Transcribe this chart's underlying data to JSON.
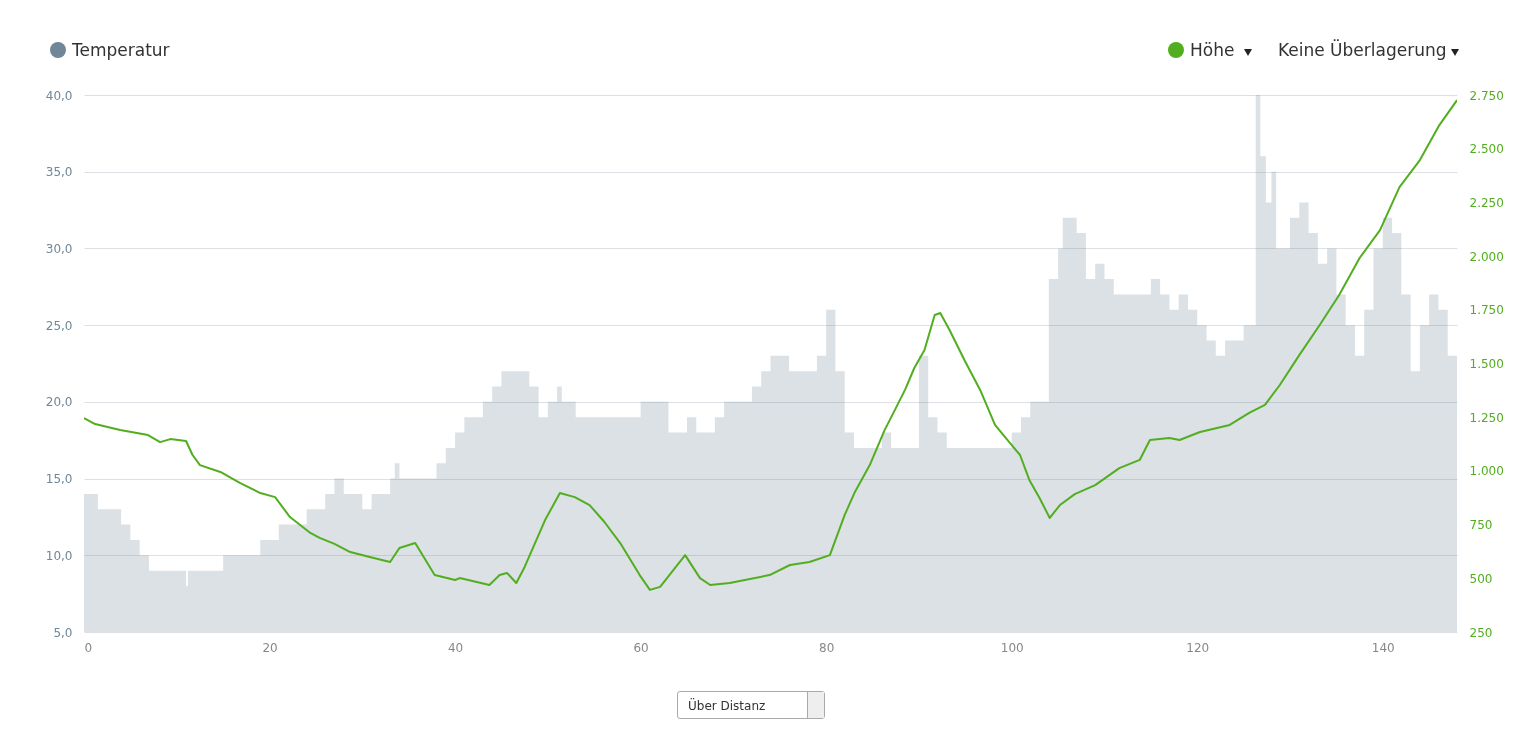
{
  "chart_data": {
    "type": "area",
    "xlim": [
      0,
      148
    ],
    "xticks": [
      0,
      20,
      40,
      60,
      80,
      100,
      120,
      140
    ],
    "ylim": [
      5,
      40
    ],
    "yticks": [
      {
        "value": 5,
        "label": "5,0"
      },
      {
        "value": 10,
        "label": "10,0"
      },
      {
        "value": 15,
        "label": "15,0"
      },
      {
        "value": 20,
        "label": "20,0"
      },
      {
        "value": 25,
        "label": "25,0"
      },
      {
        "value": 30,
        "label": "30,0"
      },
      {
        "value": 35,
        "label": "35,0"
      },
      {
        "value": 40,
        "label": "40,0"
      }
    ],
    "y2lim": [
      250,
      2750
    ],
    "y2ticks": [
      {
        "value": 250,
        "label": "250"
      },
      {
        "value": 500,
        "label": "500"
      },
      {
        "value": 750,
        "label": "750"
      },
      {
        "value": 1000,
        "label": "1.000"
      },
      {
        "value": 1250,
        "label": "1.250"
      },
      {
        "value": 1500,
        "label": "1.500"
      },
      {
        "value": 1750,
        "label": "1.750"
      },
      {
        "value": 2000,
        "label": "2.000"
      },
      {
        "value": 2250,
        "label": "2.250"
      },
      {
        "value": 2500,
        "label": "2.500"
      },
      {
        "value": 2750,
        "label": "2.750"
      }
    ],
    "grid": "y",
    "legend": "top",
    "annotations": [
      "Keine Überlagerung",
      "Über Distanz"
    ],
    "series": [
      {
        "name": "Temperatur",
        "color": "#6f8798",
        "x": [
          0,
          1.5,
          4,
          5,
          6,
          7,
          11,
          11.2,
          15,
          19,
          21,
          24,
          26,
          27,
          28,
          30,
          31,
          33,
          33.5,
          34,
          38,
          39,
          40,
          41,
          43,
          44,
          45,
          48,
          49,
          50,
          51,
          51.5,
          53,
          60,
          63,
          65,
          66,
          68,
          69,
          72,
          73,
          74,
          76,
          79,
          80,
          81,
          82,
          83,
          86,
          87,
          90,
          91,
          92,
          93,
          100,
          101,
          102,
          104,
          105,
          105.5,
          107,
          108,
          109,
          110,
          111,
          115,
          116,
          117,
          118,
          119,
          120,
          121,
          122,
          123,
          125,
          126.3,
          126.8,
          127.4,
          128,
          128.5,
          130,
          131,
          132,
          133,
          134,
          135,
          136,
          137,
          138,
          139,
          140,
          141,
          142,
          143,
          144,
          145,
          146,
          147,
          148
        ],
        "values": [
          14,
          13,
          12,
          11,
          10,
          9,
          8,
          9,
          10,
          11,
          12,
          13,
          14,
          15,
          14,
          13,
          14,
          15,
          16,
          15,
          16,
          17,
          18,
          19,
          20,
          21,
          22,
          21,
          19,
          20,
          21,
          20,
          19,
          20,
          18,
          19,
          18,
          19,
          20,
          21,
          22,
          23,
          22,
          23,
          26,
          22,
          18,
          17,
          18,
          17,
          23,
          19,
          18,
          17,
          18,
          19,
          20,
          28,
          30,
          32,
          31,
          28,
          29,
          28,
          27,
          28,
          27,
          26,
          27,
          26,
          25,
          24,
          23,
          24,
          25,
          40,
          36,
          33,
          35,
          30,
          32,
          33,
          31,
          29,
          30,
          27,
          25,
          23,
          26,
          30,
          32,
          31,
          27,
          22,
          25,
          27,
          26,
          23,
          23
        ]
      },
      {
        "name": "Höhe",
        "type": "line",
        "axis": "y2",
        "color": "#52ae1f",
        "x": [
          0,
          1.2,
          3.9,
          6.9,
          8.2,
          9.3,
          11,
          11.7,
          12.5,
          14.7,
          16.8,
          19,
          20.6,
          22.2,
          24.4,
          25.4,
          27,
          28.7,
          30.8,
          33,
          34,
          35.7,
          37.8,
          40,
          40.5,
          43.7,
          44.8,
          45.6,
          46.6,
          47.5,
          49.7,
          51.3,
          52.9,
          54.5,
          56.1,
          57.8,
          59.9,
          61,
          62.1,
          64.8,
          66.4,
          67.5,
          69.6,
          73.9,
          76.1,
          78.2,
          80.4,
          82,
          83.1,
          84.7,
          86.3,
          87.4,
          88.5,
          89.5,
          90.6,
          91.7,
          92.3,
          93.3,
          94.9,
          96.6,
          98.2,
          99.8,
          100.9,
          101.9,
          103,
          104.1,
          105.2,
          106.8,
          109,
          111.6,
          113.8,
          114.9,
          117,
          118.1,
          120.3,
          123.5,
          125.6,
          127.3,
          128.9,
          131,
          133.2,
          135.3,
          137.5,
          139.7,
          141.8,
          144,
          146.1,
          148
        ],
        "values": [
          1246,
          1218,
          1190,
          1167,
          1134,
          1148,
          1139,
          1074,
          1027,
          995,
          944,
          897,
          878,
          785,
          711,
          688,
          660,
          622,
          599,
          576,
          641,
          664,
          515,
          492,
          501,
          469,
          515,
          525,
          478,
          553,
          771,
          897,
          878,
          841,
          762,
          664,
          515,
          446,
          460,
          608,
          501,
          469,
          478,
          515,
          562,
          576,
          608,
          795,
          902,
          1027,
          1190,
          1283,
          1377,
          1479,
          1563,
          1726,
          1735,
          1656,
          1516,
          1377,
          1214,
          1130,
          1074,
          958,
          874,
          781,
          841,
          892,
          934,
          1013,
          1051,
          1144,
          1153,
          1144,
          1181,
          1214,
          1270,
          1307,
          1400,
          1539,
          1679,
          1819,
          1991,
          2121,
          2321,
          2447,
          2610,
          2726
        ]
      }
    ]
  }
}
